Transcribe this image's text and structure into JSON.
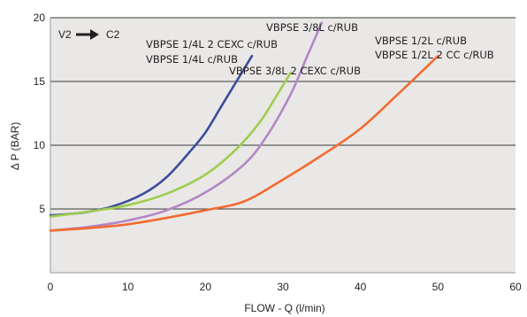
{
  "chart_data": {
    "type": "line",
    "title": "",
    "xlabel": "FLOW - Q (l/min)",
    "ylabel": "Δ P (BAR)",
    "xlim": [
      0,
      60
    ],
    "ylim": [
      0,
      20
    ],
    "x_ticks": [
      0,
      10,
      20,
      30,
      40,
      50,
      60
    ],
    "y_ticks": [
      5,
      10,
      15,
      20
    ],
    "grid": "horizontal",
    "annotation": {
      "from": "V2",
      "to": "C2"
    },
    "colors": {
      "plot_background": "#e9e8e6",
      "gridline": "#3a3a3a",
      "text": "#231f20"
    },
    "series": [
      {
        "name": "VBPSE 1/4L 2 CEXC c/RUB",
        "color": "#3d4d9c",
        "x": [
          0,
          4,
          8,
          12,
          15,
          18,
          20,
          22,
          24,
          26
        ],
        "y": [
          4.5,
          4.7,
          5.2,
          6.2,
          7.5,
          9.5,
          11,
          13,
          15,
          17
        ]
      },
      {
        "name": "VBPSE 1/4L c/RUB",
        "color": "#9fcd4e",
        "x": [
          0,
          5,
          10,
          15,
          20,
          24,
          27,
          29,
          31
        ],
        "y": [
          4.4,
          4.8,
          5.3,
          6.2,
          7.7,
          9.7,
          11.8,
          13.7,
          15.7
        ]
      },
      {
        "name": "VBPSE 3/8L 2 CEXC c/RUB",
        "color": "#b386c5",
        "x": [
          0,
          5,
          10,
          15,
          20,
          25,
          28,
          31,
          33,
          35
        ],
        "y": [
          3.3,
          3.6,
          4.1,
          4.9,
          6.3,
          8.5,
          10.8,
          14,
          16.8,
          19.6
        ]
      },
      {
        "name": "VBPSE 3/8L c/RUB",
        "color": "#b386c5",
        "x": [],
        "y": []
      },
      {
        "name": "VBPSE 1/2L c/RUB",
        "color": "#f26b30",
        "x": [
          0,
          5,
          10,
          15,
          20,
          25,
          30,
          35,
          40,
          45,
          50
        ],
        "y": [
          3.3,
          3.5,
          3.8,
          4.3,
          4.9,
          5.6,
          7.3,
          9.2,
          11.3,
          14.1,
          17
        ]
      },
      {
        "name": "VBPSE 1/2L 2 CC c/RUB",
        "color": "#f26b30",
        "x": [],
        "y": []
      }
    ],
    "labels": [
      {
        "text": "VBPSE 1/4L 2 CEXC c/RUB",
        "series": 0
      },
      {
        "text": "VBPSE 1/4L c/RUB",
        "series": 0
      },
      {
        "text": "VBPSE 3/8L 2 CEXC c/RUB",
        "series": 1
      },
      {
        "text": "VBPSE 3/8L c/RUB",
        "series": 2
      },
      {
        "text": "VBPSE 1/2L c/RUB",
        "series": 4
      },
      {
        "text": "VBPSE 1/2L 2 CC c/RUB",
        "series": 4
      }
    ]
  }
}
